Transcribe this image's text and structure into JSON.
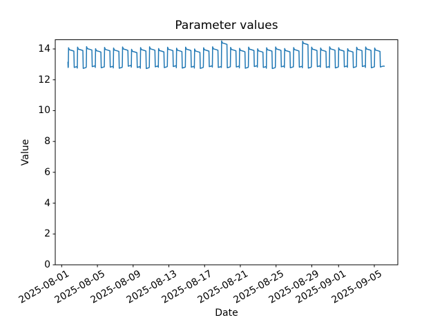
{
  "chart_data": {
    "type": "line",
    "title": "Parameter values",
    "xlabel": "Date",
    "ylabel": "Value",
    "line_color": "#1f77b4",
    "axis_color": "#000000",
    "background_color": "#ffffff",
    "grid": false,
    "legend": false,
    "x_unit": "days since 2025-08-01 00:00",
    "xlim_days": [
      -0.72,
      37.63
    ],
    "ylim": [
      0,
      14.6
    ],
    "x_ticks": {
      "days": [
        0,
        4,
        8,
        12,
        16,
        20,
        24,
        28,
        31,
        35
      ],
      "labels": [
        "2025-08-01",
        "2025-08-05",
        "2025-08-09",
        "2025-08-13",
        "2025-08-17",
        "2025-08-21",
        "2025-08-25",
        "2025-08-29",
        "2025-09-01",
        "2025-09-05"
      ]
    },
    "y_ticks": [
      0,
      2,
      4,
      6,
      8,
      10,
      12,
      14
    ],
    "waveform": {
      "description": "daily square-wave oscillation between ~12.8 and ~14.1, high ~64% of each cycle, occasional spikes to ~14.5",
      "start_point": [
        0.7,
        13.15
      ],
      "first_rise_day": 0.74,
      "period_days": 1.008,
      "high_fraction": 0.64,
      "end_day": 36.12,
      "end_value": 12.88,
      "cycle_peaks": [
        14.08,
        14.12,
        14.15,
        14.02,
        14.1,
        14.06,
        14.13,
        13.98,
        14.09,
        14.14,
        14.03,
        14.11,
        14.05,
        14.12,
        14.0,
        14.08,
        14.14,
        14.52,
        14.1,
        14.04,
        14.12,
        14.01,
        14.08,
        14.13,
        14.03,
        14.09,
        14.5,
        14.12,
        14.06,
        14.14,
        14.08,
        14.02,
        14.11,
        14.13,
        14.06
      ],
      "cycle_lows": [
        12.8,
        12.74,
        12.85,
        12.78,
        12.82,
        12.75,
        12.88,
        12.8,
        12.73,
        12.84,
        12.79,
        12.86,
        12.76,
        12.82,
        12.74,
        12.85,
        12.8,
        12.78,
        12.83,
        12.75,
        12.86,
        12.8,
        12.73,
        12.84,
        12.78,
        12.82,
        12.76,
        12.85,
        12.8,
        12.77,
        12.84,
        12.79,
        12.86,
        12.78,
        12.83
      ]
    }
  }
}
